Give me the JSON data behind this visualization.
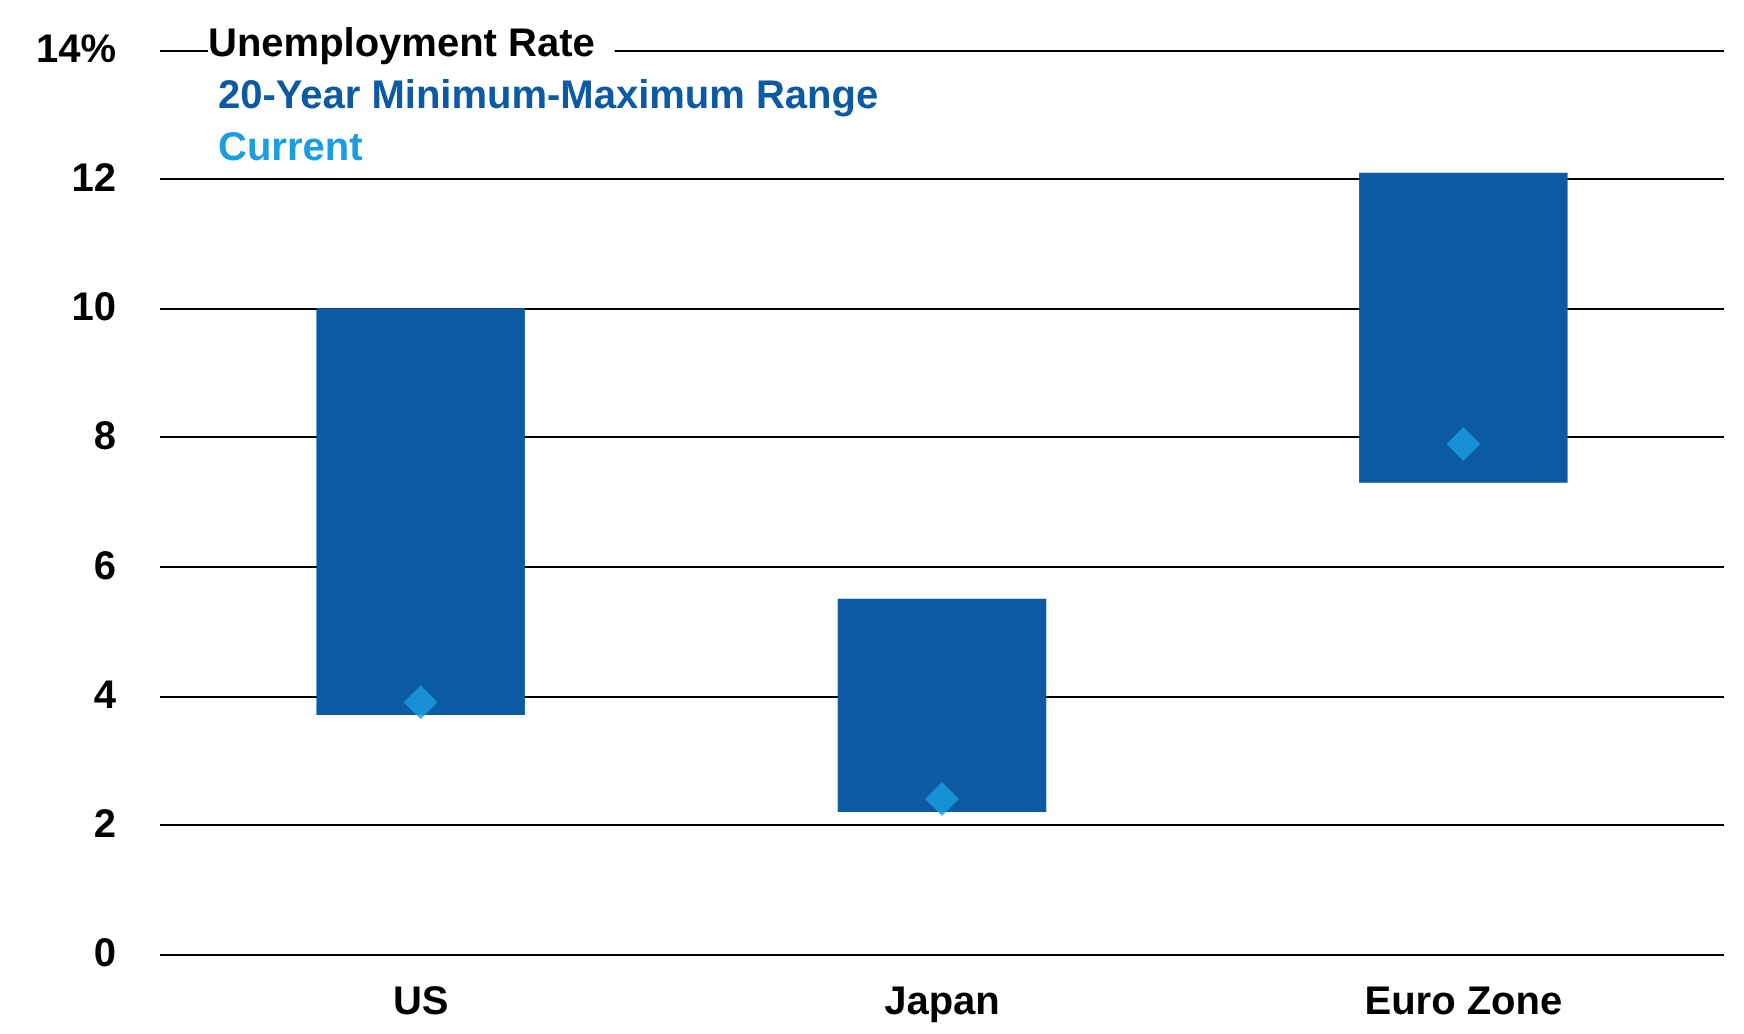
{
  "chart_data": {
    "type": "bar",
    "legend_title": "Unemployment Rate",
    "categories": [
      "US",
      "Japan",
      "Euro Zone"
    ],
    "series": [
      {
        "name": "20-Year Minimum-Maximum Range",
        "type": "bar",
        "color": "#0b5aa3",
        "base": [
          3.7,
          2.2,
          7.3
        ],
        "values": [
          6.3,
          3.3,
          4.8
        ]
      },
      {
        "name": "Current",
        "type": "scatter",
        "color": "#1a9ee0",
        "marker": "diamond",
        "x": [
          "US",
          "Japan",
          "Euro Zone"
        ],
        "values": [
          3.9,
          2.4,
          7.9
        ]
      }
    ],
    "ylim": [
      0,
      14
    ],
    "yticks": [
      0,
      2,
      4,
      6,
      8,
      10,
      12,
      {
        "value": 14,
        "label": "14%"
      }
    ],
    "grid": "y",
    "legend": "top left"
  }
}
